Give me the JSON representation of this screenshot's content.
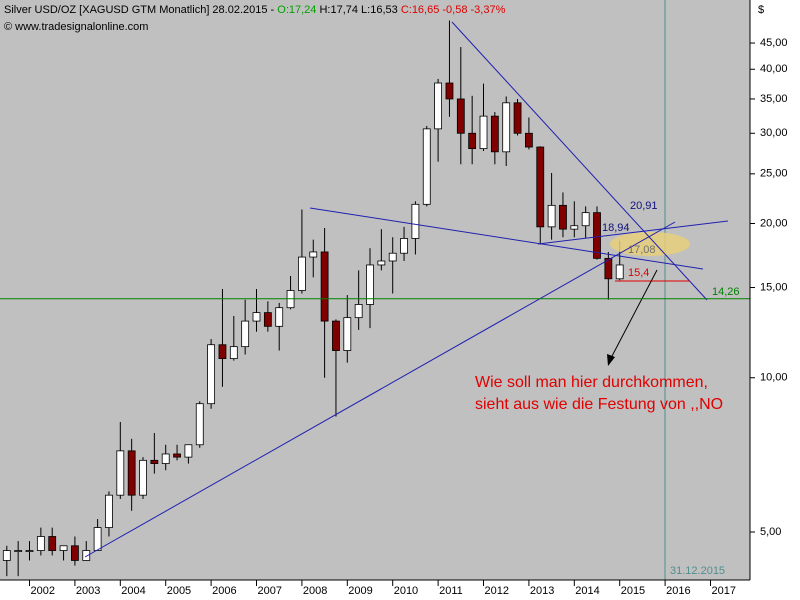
{
  "chart_data": {
    "type": "candlestick",
    "header": {
      "instrument": "Silver USD/OZ [XAGUSD GTM  Monatlich] 28.02.2015 - ",
      "open": "O:17,24",
      "highlow": " H:17,74 L:16,53 ",
      "close": "C:16,65 -0,58 -3,37%"
    },
    "watermark": "© www.tradesignalonline.com",
    "currency": "$",
    "vline_label": "31.12.2015",
    "annotations": {
      "a1": "20,91",
      "a2": "18,94",
      "a3": "17,08",
      "a4": "15,4",
      "a5": "14,26"
    },
    "comment": [
      "Wie soll man hier durchkommen,",
      "sieht aus wie die Festung von ,,NO"
    ],
    "support": 14.26,
    "x": [
      2001.5,
      2001.75,
      2002,
      2002.25,
      2002.5,
      2002.75,
      2003,
      2003.25,
      2003.5,
      2003.75,
      2004,
      2004.25,
      2004.5,
      2004.75,
      2005,
      2005.25,
      2005.5,
      2005.75,
      2006,
      2006.25,
      2006.5,
      2006.75,
      2007,
      2007.25,
      2007.5,
      2007.75,
      2008,
      2008.25,
      2008.5,
      2008.75,
      2009,
      2009.25,
      2009.5,
      2009.75,
      2010,
      2010.25,
      2010.5,
      2010.75,
      2011,
      2011.25,
      2011.5,
      2011.75,
      2012,
      2012.25,
      2012.5,
      2012.75,
      2013,
      2013.25,
      2013.5,
      2013.75,
      2014,
      2014.25,
      2014.5,
      2014.75,
      2015
    ],
    "open": [
      4.4,
      4.6,
      4.6,
      4.6,
      4.9,
      4.6,
      4.7,
      4.4,
      4.6,
      5.1,
      5.9,
      7.2,
      5.9,
      6.9,
      6.8,
      7.1,
      7.0,
      7.4,
      8.9,
      11.6,
      10.9,
      11.5,
      12.9,
      13.4,
      12.6,
      13.7,
      14.8,
      17.2,
      17.6,
      12.9,
      11.3,
      13.1,
      13.9,
      16.6,
      16.9,
      17.5,
      18.7,
      21.8,
      30.6,
      37.6,
      35.0,
      30.0,
      28.0,
      32.4,
      27.6,
      34.4,
      30.0,
      28.2,
      19.7,
      21.7,
      19.5,
      19.8,
      21.0,
      17.1,
      15.6
    ],
    "high": [
      4.7,
      4.8,
      4.8,
      5.1,
      5.1,
      4.7,
      4.9,
      4.8,
      5.3,
      6.0,
      8.2,
      7.6,
      7.0,
      7.8,
      7.4,
      7.4,
      7.4,
      9.0,
      11.9,
      14.9,
      13.2,
      14.2,
      14.9,
      14.1,
      14.0,
      15.8,
      21.3,
      18.6,
      19.6,
      13.0,
      14.5,
      16.2,
      17.9,
      19.5,
      18.8,
      19.7,
      22.1,
      31.0,
      38.3,
      49.8,
      44.2,
      35.5,
      37.5,
      33.0,
      35.4,
      35.0,
      32.2,
      28.3,
      25.1,
      23.0,
      22.1,
      21.6,
      21.6,
      17.6,
      18.5
    ],
    "low": [
      4.1,
      4.1,
      4.4,
      4.5,
      4.5,
      4.4,
      4.3,
      4.4,
      4.6,
      4.9,
      5.8,
      5.5,
      5.8,
      6.5,
      6.6,
      6.9,
      6.8,
      7.3,
      8.7,
      9.6,
      10.8,
      11.1,
      12.3,
      12.3,
      11.3,
      13.6,
      14.6,
      15.7,
      10.0,
      8.4,
      10.7,
      12.4,
      12.5,
      16.2,
      14.6,
      16.9,
      17.4,
      21.6,
      26.4,
      32.3,
      26.1,
      26.1,
      27.7,
      26.1,
      25.9,
      29.7,
      27.9,
      18.2,
      18.6,
      18.8,
      18.8,
      18.7,
      17.0,
      14.2,
      15.5
    ],
    "close": [
      4.6,
      4.6,
      4.6,
      4.9,
      4.6,
      4.7,
      4.4,
      4.6,
      5.1,
      5.9,
      7.2,
      5.9,
      6.9,
      6.8,
      7.1,
      7.0,
      7.4,
      8.9,
      11.6,
      10.9,
      11.5,
      12.9,
      13.4,
      12.6,
      13.7,
      14.8,
      17.2,
      17.6,
      12.9,
      11.3,
      13.1,
      13.9,
      16.6,
      16.9,
      17.5,
      18.7,
      21.8,
      30.6,
      37.6,
      35.0,
      30.0,
      28.0,
      32.4,
      27.6,
      34.4,
      30.0,
      28.2,
      19.7,
      21.7,
      19.5,
      19.8,
      21.0,
      17.1,
      15.6,
      16.6
    ],
    "up_color": "#ffffff",
    "down_color": "#800000",
    "xlim": [
      2001.35,
      2017.87
    ],
    "ylim": [
      4.03,
      54.6
    ],
    "log_y": true,
    "xticks": [
      2002,
      2003,
      2004,
      2005,
      2006,
      2007,
      2008,
      2009,
      2010,
      2011,
      2012,
      2013,
      2014,
      2015,
      2016,
      2017
    ],
    "yticks": [
      {
        "value": 5,
        "label": "5,00"
      },
      {
        "value": 10,
        "label": "10,00"
      },
      {
        "value": 15,
        "label": "15,00"
      },
      {
        "value": 20,
        "label": "20,00"
      },
      {
        "value": 25,
        "label": "25,00"
      },
      {
        "value": 30,
        "label": "30,00"
      },
      {
        "value": 35,
        "label": "35,00"
      },
      {
        "value": 40,
        "label": "40,00"
      },
      {
        "value": 45,
        "label": "45,00"
      }
    ]
  }
}
